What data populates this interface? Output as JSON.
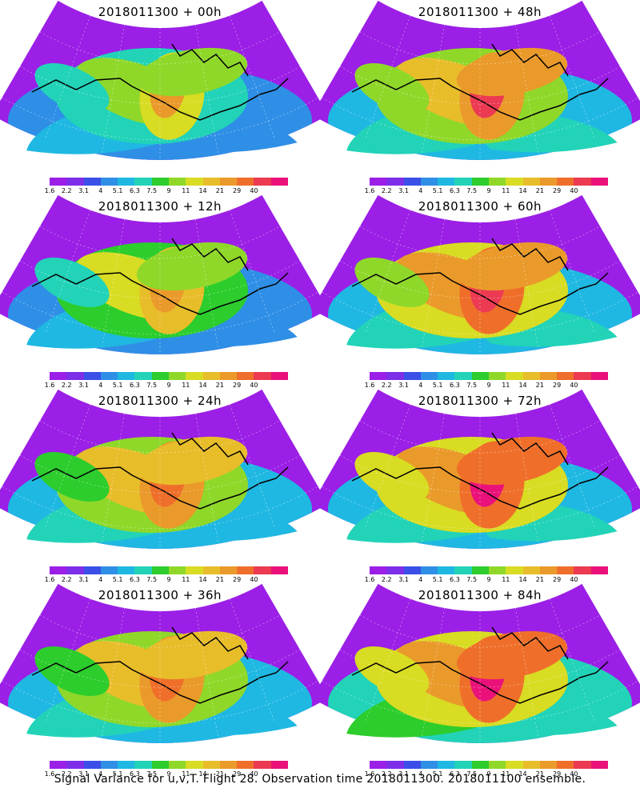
{
  "palette": [
    "#9b1fe6",
    "#7c2ee8",
    "#3b4fe8",
    "#2f8fe6",
    "#1fb8e2",
    "#22d3b8",
    "#2ccd2c",
    "#8fd82a",
    "#d8dc22",
    "#e8bd2a",
    "#ea9a2a",
    "#ef6f2a",
    "#ec3a52",
    "#ea127a"
  ],
  "colorbar_labels": [
    "1.6",
    "2.2",
    "3.1",
    "4",
    "5.1",
    "6.3",
    "7.5",
    "9",
    "11",
    "14",
    "21",
    "29",
    "40"
  ],
  "panels": [
    {
      "title": "2018011300 + 00h",
      "level": 0.25
    },
    {
      "title": "2018011300 + 48h",
      "level": 0.65
    },
    {
      "title": "2018011300 + 12h",
      "level": 0.35
    },
    {
      "title": "2018011300 + 60h",
      "level": 0.72
    },
    {
      "title": "2018011300 + 24h",
      "level": 0.5
    },
    {
      "title": "2018011300 + 72h",
      "level": 0.8
    },
    {
      "title": "2018011300 + 36h",
      "level": 0.58
    },
    {
      "title": "2018011300 + 84h",
      "level": 0.85
    }
  ],
  "footer": "Signal Variance for u,v,T. Flight 28. Observation time 2018011300. 2018011100 ensemble."
}
